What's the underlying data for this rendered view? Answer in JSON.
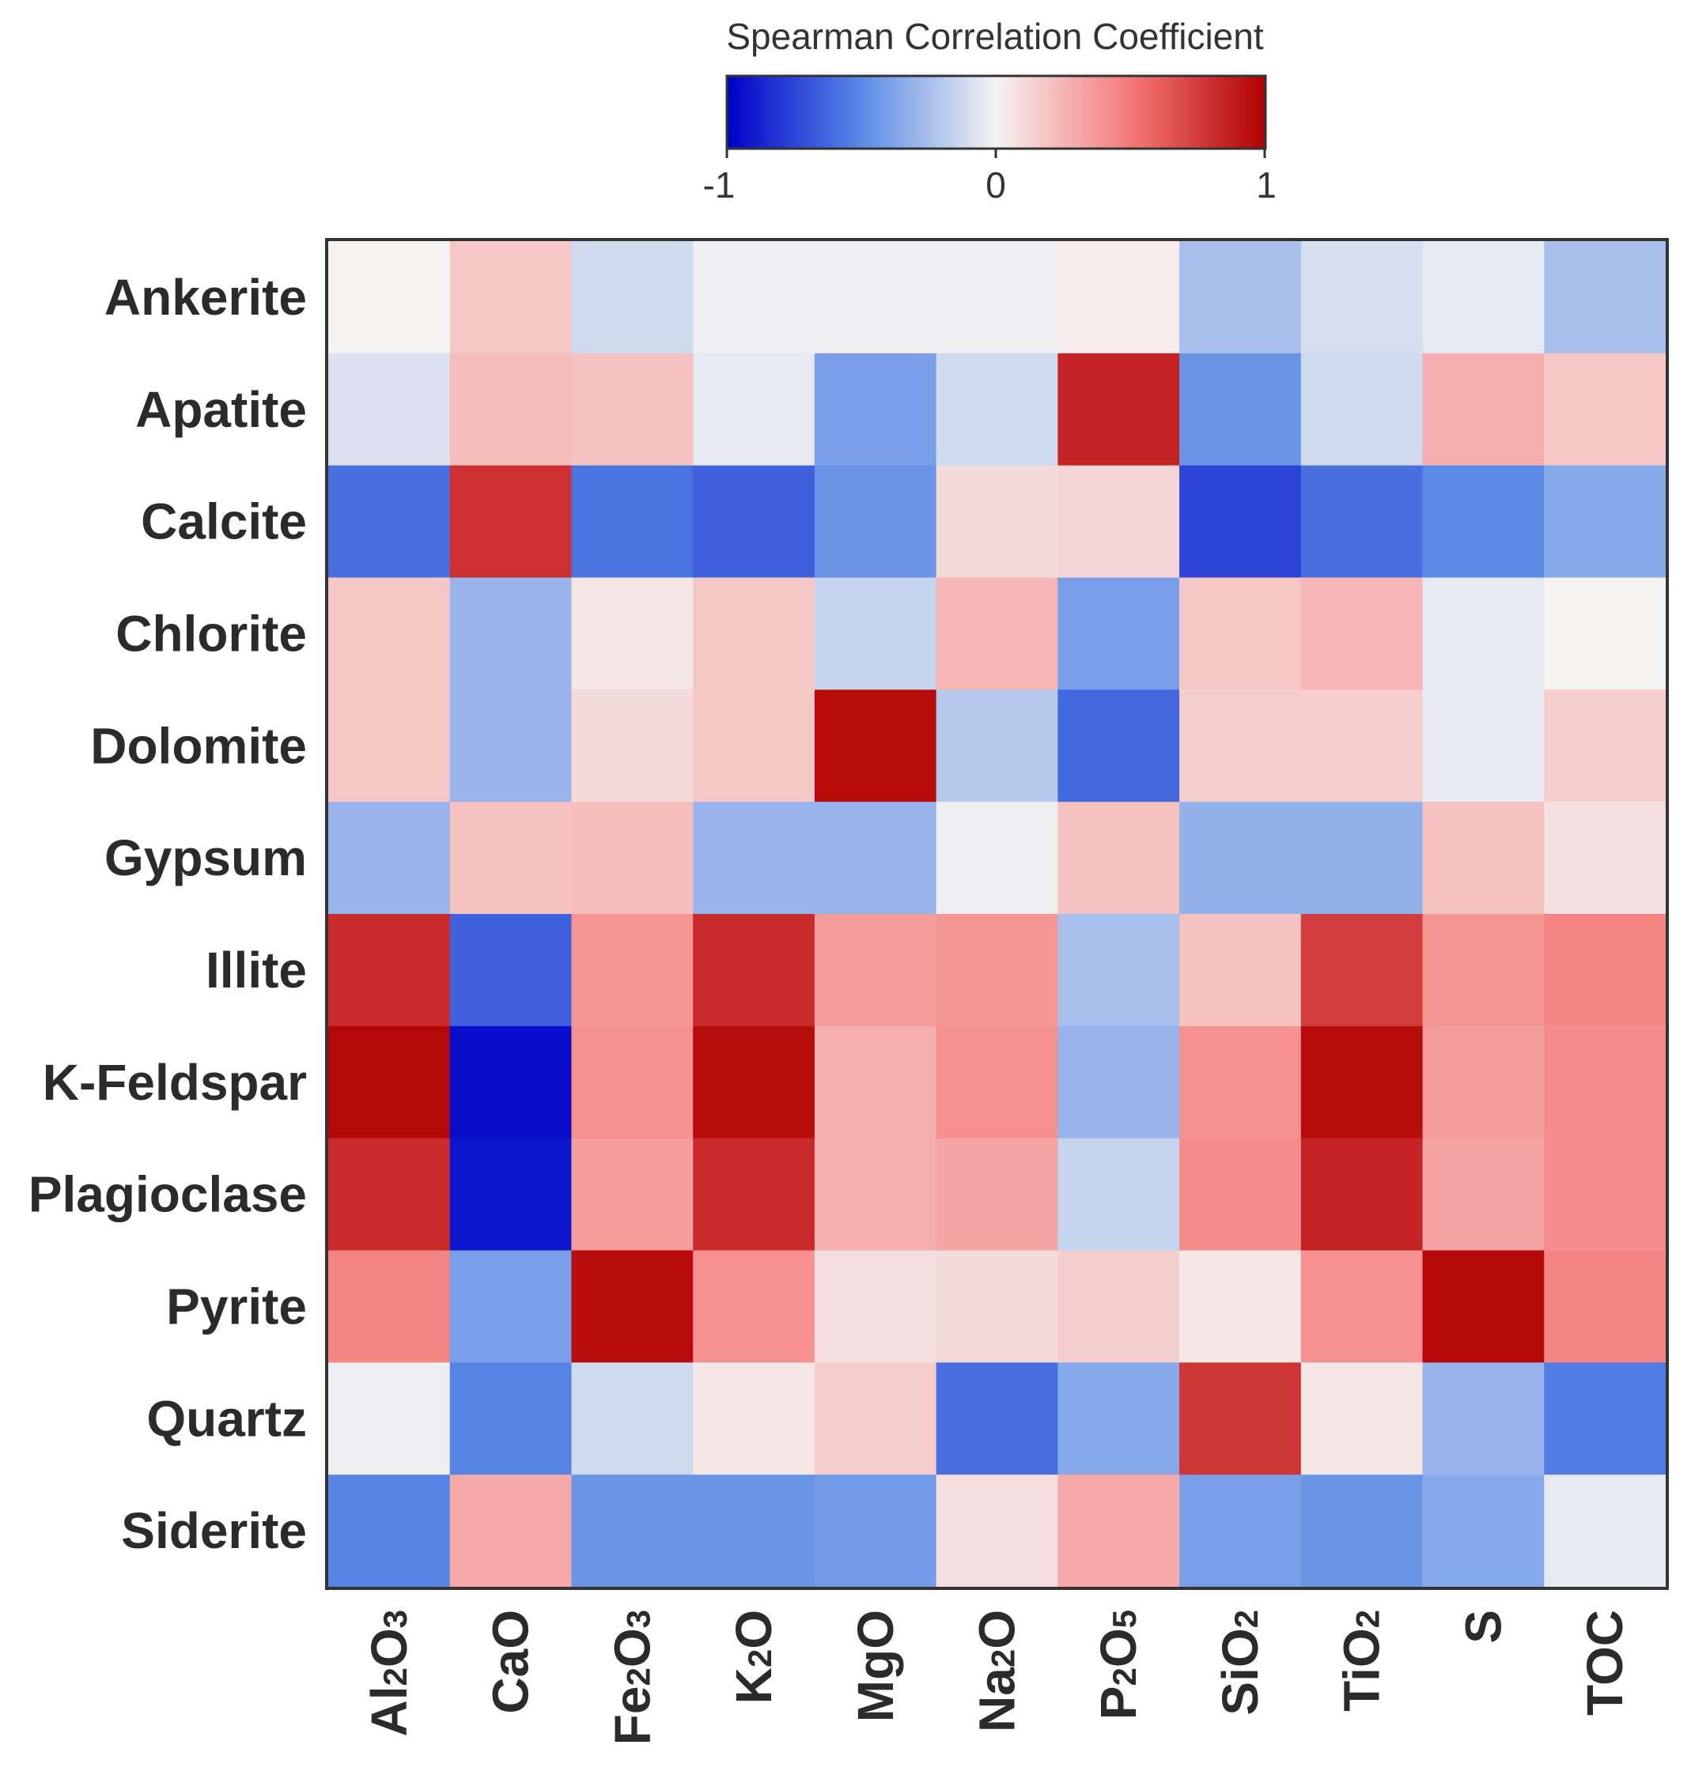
{
  "chart_data": {
    "type": "heatmap",
    "title": "",
    "colorbar": {
      "title": "Spearman Correlation Coefficient",
      "min": -1,
      "max": 1,
      "ticks": [
        "-1",
        "0",
        "1"
      ],
      "colors": [
        "#0000c8",
        "#5a8ae6",
        "#f5f3f2",
        "#f57878",
        "#b00000"
      ]
    },
    "rows": [
      "Ankerite",
      "Apatite",
      "Calcite",
      "Chlorite",
      "Dolomite",
      "Gypsum",
      "Illite",
      "K-Feldspar",
      "Plagioclase",
      "Pyrite",
      "Quartz",
      "Siderite"
    ],
    "columns": [
      "Al2O3",
      "CaO",
      "Fe2O3",
      "K2O",
      "MgO",
      "Na2O",
      "P2O5",
      "SiO2",
      "TiO2",
      "S",
      "TOC"
    ],
    "column_labels": [
      {
        "parts": [
          [
            "Al",
            false
          ],
          [
            "2",
            true
          ],
          [
            "O",
            false
          ],
          [
            "3",
            true
          ]
        ]
      },
      {
        "parts": [
          [
            "CaO",
            false
          ]
        ]
      },
      {
        "parts": [
          [
            "Fe",
            false
          ],
          [
            "2",
            true
          ],
          [
            "O",
            false
          ],
          [
            "3",
            true
          ]
        ]
      },
      {
        "parts": [
          [
            "K",
            false
          ],
          [
            "2",
            true
          ],
          [
            "O",
            false
          ]
        ]
      },
      {
        "parts": [
          [
            "MgO",
            false
          ]
        ]
      },
      {
        "parts": [
          [
            "Na",
            false
          ],
          [
            "2",
            true
          ],
          [
            "O",
            false
          ]
        ]
      },
      {
        "parts": [
          [
            "P",
            false
          ],
          [
            "2",
            true
          ],
          [
            "O",
            false
          ],
          [
            "5",
            true
          ]
        ]
      },
      {
        "parts": [
          [
            "SiO",
            false
          ],
          [
            "2",
            true
          ]
        ]
      },
      {
        "parts": [
          [
            "TiO",
            false
          ],
          [
            "2",
            true
          ]
        ]
      },
      {
        "parts": [
          [
            "S",
            false
          ]
        ]
      },
      {
        "parts": [
          [
            "TOC",
            false
          ]
        ]
      }
    ],
    "values": [
      [
        0.0,
        0.18,
        -0.12,
        -0.02,
        -0.02,
        -0.02,
        0.03,
        -0.25,
        -0.1,
        -0.05,
        -0.25
      ],
      [
        -0.08,
        0.22,
        0.2,
        -0.05,
        -0.4,
        -0.12,
        0.85,
        -0.45,
        -0.12,
        0.28,
        0.18
      ],
      [
        -0.6,
        0.8,
        -0.58,
        -0.65,
        -0.45,
        0.1,
        0.12,
        -0.75,
        -0.6,
        -0.5,
        -0.35
      ],
      [
        0.18,
        -0.3,
        0.05,
        0.18,
        -0.15,
        0.25,
        -0.4,
        0.18,
        0.25,
        -0.05,
        0.0
      ],
      [
        0.18,
        -0.3,
        0.1,
        0.18,
        0.95,
        -0.2,
        -0.62,
        0.15,
        0.15,
        -0.05,
        0.15
      ],
      [
        -0.3,
        0.2,
        0.22,
        -0.3,
        -0.3,
        -0.02,
        0.2,
        -0.32,
        -0.32,
        0.2,
        0.08
      ],
      [
        0.82,
        -0.65,
        0.38,
        0.82,
        0.35,
        0.38,
        -0.25,
        0.2,
        0.75,
        0.38,
        0.45
      ],
      [
        0.97,
        -0.95,
        0.4,
        0.95,
        0.28,
        0.4,
        -0.3,
        0.4,
        0.95,
        0.35,
        0.42
      ],
      [
        0.82,
        -0.92,
        0.35,
        0.82,
        0.28,
        0.32,
        -0.15,
        0.42,
        0.85,
        0.32,
        0.42
      ],
      [
        0.45,
        -0.4,
        0.95,
        0.4,
        0.08,
        0.1,
        0.15,
        0.05,
        0.4,
        0.97,
        0.45
      ],
      [
        -0.02,
        -0.52,
        -0.12,
        0.05,
        0.15,
        -0.6,
        -0.35,
        0.78,
        0.05,
        -0.3,
        -0.55
      ],
      [
        -0.52,
        0.3,
        -0.45,
        -0.45,
        -0.42,
        0.08,
        0.3,
        -0.4,
        -0.45,
        -0.35,
        -0.05
      ]
    ]
  }
}
